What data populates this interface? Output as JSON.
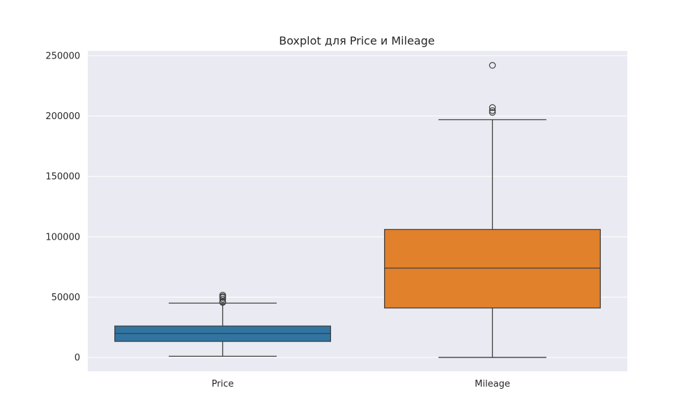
{
  "chart_data": {
    "type": "boxplot",
    "title": "Boxplot для Price и Mileage",
    "xlabel": "",
    "ylabel": "",
    "ylim": [
      -11500,
      254000
    ],
    "yticks": [
      0,
      50000,
      100000,
      150000,
      200000,
      250000
    ],
    "ytick_labels": [
      "0",
      "50000",
      "100000",
      "150000",
      "200000",
      "250000"
    ],
    "grid": true,
    "legend": "none",
    "categories": [
      "Price",
      "Mileage"
    ],
    "boxes": [
      {
        "category": "Price",
        "color": "#3274a1",
        "whisker_low": 1000,
        "q1": 13300,
        "median": 19900,
        "q3": 26000,
        "whisker_high": 45000,
        "outliers": [
          45600,
          46300,
          48200,
          49700,
          50400,
          51600
        ]
      },
      {
        "category": "Mileage",
        "color": "#e1812c",
        "whisker_low": 0,
        "q1": 41000,
        "median": 74000,
        "q3": 106000,
        "whisker_high": 197000,
        "outliers": [
          203000,
          204500,
          207000,
          242000
        ]
      }
    ]
  }
}
